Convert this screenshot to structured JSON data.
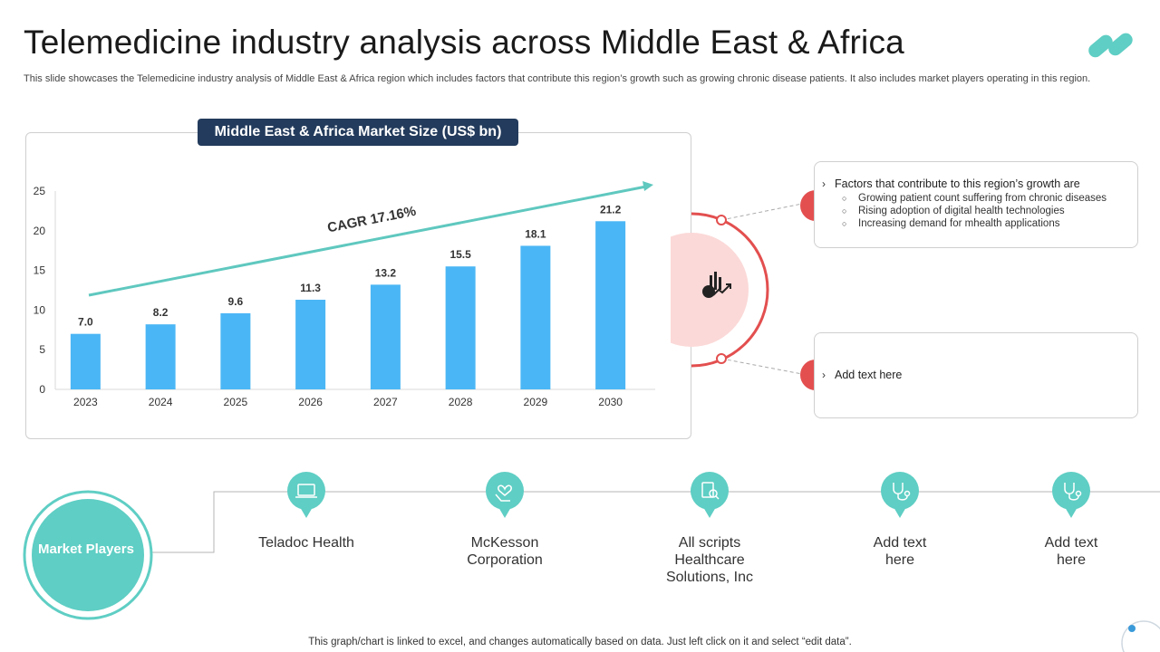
{
  "page": {
    "title": "Telemedicine industry analysis across Middle East & Africa",
    "subtitle": "This slide showcases the Telemedicine industry analysis of Middle East & Africa region which includes factors that contribute this region’s growth such as growing chronic disease patients. It also includes market players operating in this region.",
    "footer": "This graph/chart is linked to excel, and changes automatically based on data. Just left click on it and select “edit data”."
  },
  "colors": {
    "bar": "#4bb6f5",
    "trend": "#5fc8bf",
    "accent_red": "#e34f4f",
    "teal": "#5fcec4",
    "header_navy": "#233b5c"
  },
  "chart_data": {
    "type": "bar",
    "title": "Middle East & Africa Market Size (US$ bn)",
    "categories": [
      "2023",
      "2024",
      "2025",
      "2026",
      "2027",
      "2028",
      "2029",
      "2030"
    ],
    "values": [
      7.0,
      8.2,
      9.6,
      11.3,
      13.2,
      15.5,
      18.1,
      21.2
    ],
    "value_labels": [
      "7.0",
      "8.2",
      "9.6",
      "11.3",
      "13.2",
      "15.5",
      "18.1",
      "21.2"
    ],
    "ylim": [
      0,
      25
    ],
    "yticks": [
      0,
      5,
      10,
      15,
      20,
      25
    ],
    "xlabel": "",
    "ylabel": "",
    "grid": false,
    "annotation": "CAGR 17.16%"
  },
  "factors": {
    "heading": "Factors that contribute to this region’s growth are",
    "items": [
      "Growing patient count suffering from chronic diseases",
      "Rising adoption of digital health technologies",
      "Increasing demand for mhealth applications"
    ],
    "placeholder": "Add text here",
    "center_icon": "analytics-chart-icon"
  },
  "market_players": {
    "label": "Market Players",
    "players": [
      {
        "name": "Teladoc Health",
        "icon": "laptop-icon"
      },
      {
        "name": "McKesson Corporation",
        "icon": "hand-heart-icon"
      },
      {
        "name": "All scripts Healthcare Solutions, Inc",
        "icon": "document-search-icon"
      },
      {
        "name": "Add text here",
        "icon": "stethoscope-icon"
      },
      {
        "name": "Add text here",
        "icon": "stethoscope-icon"
      }
    ]
  }
}
